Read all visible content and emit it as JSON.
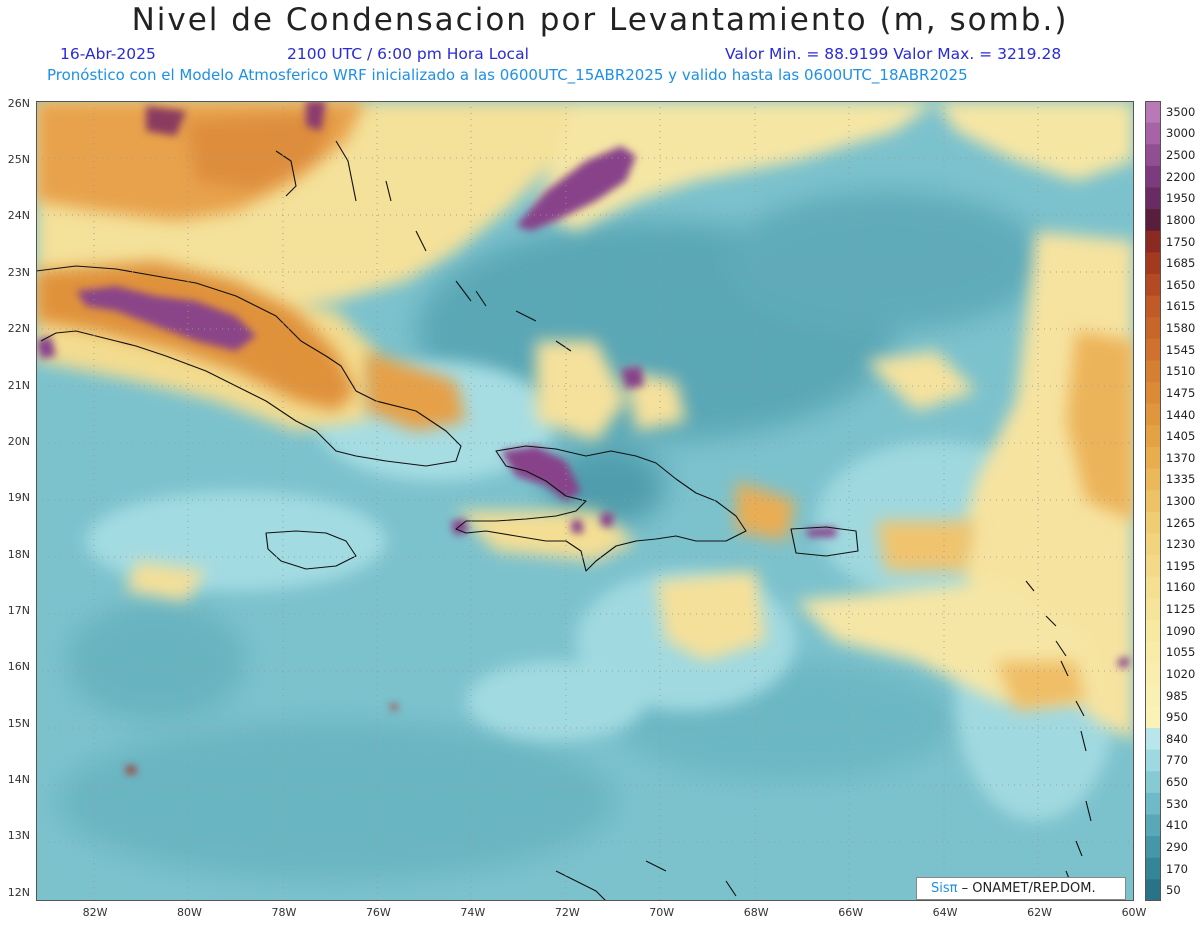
{
  "header": {
    "title": "Nivel de Condensacion por Levantamiento (m, somb.)",
    "date": "16-Abr-2025",
    "time": "2100 UTC / 6:00 pm Hora Local",
    "range": "Valor Min. = 88.9199  Valor Max. = 3219.28",
    "model_info": "Pronóstico con el Modelo Atmosferico WRF inicializado a las 0600UTC_15ABR2025 y valido hasta las  0600UTC_18ABR2025"
  },
  "axes": {
    "lat_labels": [
      "26N",
      "25N",
      "24N",
      "23N",
      "22N",
      "21N",
      "20N",
      "19N",
      "18N",
      "17N",
      "16N",
      "15N",
      "14N",
      "13N",
      "12N"
    ],
    "lat_values": [
      26,
      25,
      24,
      23,
      22,
      21,
      20,
      19,
      18,
      17,
      16,
      15,
      14,
      13,
      12
    ],
    "lon_labels": [
      "82W",
      "80W",
      "78W",
      "76W",
      "74W",
      "72W",
      "70W",
      "68W",
      "66W",
      "64W",
      "62W",
      "60W"
    ],
    "lon_values": [
      -82,
      -80,
      -78,
      -76,
      -74,
      -72,
      -70,
      -68,
      -66,
      -64,
      -62,
      -60
    ],
    "lon_range": [
      -83.25,
      -60
    ],
    "lat_range": [
      11.85,
      26.05
    ]
  },
  "colorbar": {
    "levels": [
      "3500",
      "3000",
      "2500",
      "2200",
      "1950",
      "1800",
      "1750",
      "1685",
      "1650",
      "1615",
      "1580",
      "1545",
      "1510",
      "1475",
      "1440",
      "1405",
      "1370",
      "1335",
      "1300",
      "1265",
      "1230",
      "1195",
      "1160",
      "1125",
      "1090",
      "1055",
      "1020",
      "985",
      "950",
      "840",
      "770",
      "650",
      "530",
      "410",
      "290",
      "170",
      "50"
    ],
    "colors": [
      "#b978b6",
      "#a863a6",
      "#914f91",
      "#7d3a7c",
      "#6a2a63",
      "#5a1e3c",
      "#8a2a20",
      "#a33a20",
      "#b44a22",
      "#c05a26",
      "#c8662a",
      "#d0722e",
      "#d67e32",
      "#dc8a36",
      "#e0963c",
      "#e4a244",
      "#e8ae4e",
      "#ebb85a",
      "#eec266",
      "#f0cc72",
      "#f2d47e",
      "#f4da88",
      "#f5e092",
      "#f6e49a",
      "#f7e8a2",
      "#f8eca8",
      "#f9eeae",
      "#f9f0b4",
      "#fbf2b8",
      "#b8e6ea",
      "#9ed8e0",
      "#86cad4",
      "#6fbac8",
      "#58a8b8",
      "#4496a8",
      "#358598",
      "#2a7386"
    ]
  },
  "credit": {
    "brand": "Sisπ",
    "org": "– ONAMET/REP.DOM."
  },
  "colors": {
    "ocean": "#6fbac8",
    "coast": "#111111",
    "grid": "#9a9a9a"
  }
}
